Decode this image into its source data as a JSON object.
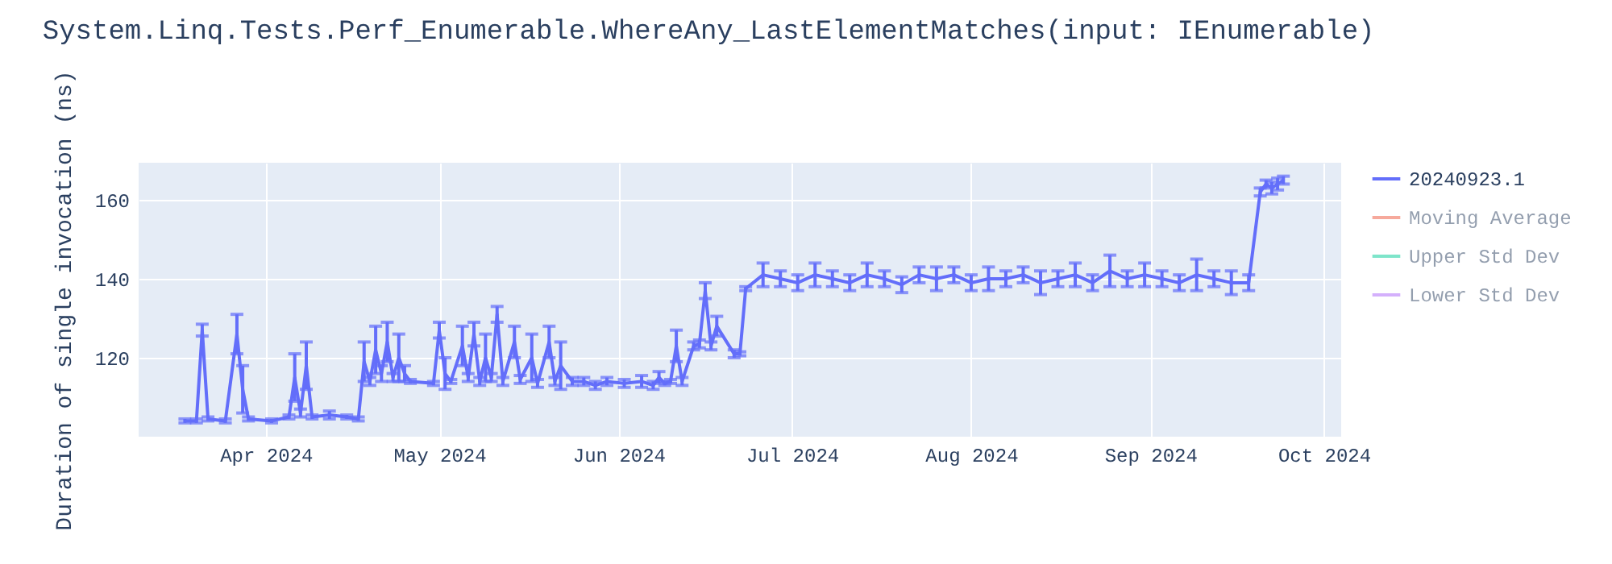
{
  "chart_data": {
    "type": "line",
    "title": "System.Linq.Tests.Perf_Enumerable.WhereAny_LastElementMatches(input: IEnumerable)",
    "ylabel": "Duration of single invocation (ns)",
    "x": [
      "2024-03-18",
      "2024-03-20",
      "2024-03-21",
      "2024-03-22",
      "2024-03-25",
      "2024-03-27",
      "2024-03-28",
      "2024-03-29",
      "2024-04-02",
      "2024-04-05",
      "2024-04-06",
      "2024-04-07",
      "2024-04-08",
      "2024-04-09",
      "2024-04-12",
      "2024-04-15",
      "2024-04-17",
      "2024-04-18",
      "2024-04-19",
      "2024-04-20",
      "2024-04-21",
      "2024-04-22",
      "2024-04-23",
      "2024-04-24",
      "2024-04-25",
      "2024-04-26",
      "2024-04-30",
      "2024-05-01",
      "2024-05-02",
      "2024-05-03",
      "2024-05-05",
      "2024-05-06",
      "2024-05-07",
      "2024-05-08",
      "2024-05-09",
      "2024-05-10",
      "2024-05-11",
      "2024-05-12",
      "2024-05-14",
      "2024-05-15",
      "2024-05-17",
      "2024-05-18",
      "2024-05-20",
      "2024-05-21",
      "2024-05-22",
      "2024-05-24",
      "2024-05-26",
      "2024-05-28",
      "2024-05-30",
      "2024-06-02",
      "2024-06-05",
      "2024-06-07",
      "2024-06-08",
      "2024-06-09",
      "2024-06-10",
      "2024-06-11",
      "2024-06-12",
      "2024-06-14",
      "2024-06-15",
      "2024-06-16",
      "2024-06-17",
      "2024-06-18",
      "2024-06-21",
      "2024-06-22",
      "2024-06-23",
      "2024-06-26",
      "2024-06-29",
      "2024-07-02",
      "2024-07-05",
      "2024-07-08",
      "2024-07-11",
      "2024-07-14",
      "2024-07-17",
      "2024-07-20",
      "2024-07-23",
      "2024-07-26",
      "2024-07-29",
      "2024-08-01",
      "2024-08-04",
      "2024-08-07",
      "2024-08-10",
      "2024-08-13",
      "2024-08-16",
      "2024-08-19",
      "2024-08-22",
      "2024-08-25",
      "2024-08-28",
      "2024-08-31",
      "2024-09-03",
      "2024-09-06",
      "2024-09-09",
      "2024-09-12",
      "2024-09-15",
      "2024-09-18",
      "2024-09-20",
      "2024-09-21",
      "2024-09-22",
      "2024-09-23",
      "2024-09-24"
    ],
    "series": [
      {
        "name": "20240923.1",
        "color": "#636efa",
        "values": [
          104,
          104,
          127,
          104.5,
          104,
          126,
          112,
          104.5,
          104,
          105,
          115,
          106,
          118,
          105,
          105.5,
          105,
          104.5,
          119,
          114,
          122,
          116,
          124,
          115,
          120,
          116,
          114,
          113.5,
          127,
          116,
          114,
          123,
          115,
          126,
          114,
          120,
          115,
          131,
          114,
          124,
          114.5,
          120,
          113.5,
          124,
          114,
          118,
          114,
          114,
          113,
          114,
          113.5,
          114,
          113,
          115,
          113.5,
          114,
          123,
          114,
          123,
          123.5,
          137,
          123,
          128,
          121,
          121,
          137.5,
          141,
          140,
          139,
          141,
          140,
          139,
          141,
          140,
          138.5,
          141,
          140,
          141,
          139,
          140,
          140,
          141,
          139,
          140,
          141,
          139,
          142,
          140,
          141,
          140,
          139,
          141,
          140,
          139,
          139,
          162,
          164,
          163,
          164,
          165
        ],
        "errors": [
          0.5,
          0.5,
          1.5,
          0.5,
          0.5,
          5,
          6,
          0.5,
          0.5,
          0.5,
          6,
          1,
          6,
          0.5,
          1,
          0.5,
          0.5,
          5,
          1,
          6,
          2,
          5,
          1,
          6,
          2,
          0.5,
          0.5,
          2,
          4,
          0.5,
          5,
          1,
          3,
          1,
          6,
          1,
          2,
          1,
          4,
          1,
          6,
          1,
          4,
          1,
          6,
          1,
          1,
          1,
          1,
          1,
          1.5,
          1,
          1.5,
          0.5,
          0.5,
          4,
          1,
          1,
          1,
          2,
          1,
          2.5,
          1,
          0.5,
          0.5,
          3,
          2,
          2,
          3,
          2,
          2,
          3,
          2,
          2,
          2,
          3,
          2,
          2,
          3,
          2,
          2,
          3,
          2,
          3,
          2,
          4,
          2,
          3,
          2,
          2,
          4,
          2,
          3,
          2,
          1,
          1,
          1.5,
          1.5,
          1
        ]
      },
      {
        "name": "Moving Average",
        "color": "#ef553b",
        "values": [
          null,
          null,
          null,
          null,
          null,
          null,
          null,
          null,
          null,
          null,
          null,
          null,
          null,
          null,
          null,
          null,
          null,
          null,
          null,
          null,
          null,
          null,
          null,
          null,
          null,
          null,
          null,
          null,
          null,
          null,
          null,
          null,
          null,
          null,
          null,
          null,
          null,
          null,
          null,
          null,
          null,
          null,
          null,
          null,
          null,
          null,
          null,
          null,
          null,
          null,
          null,
          null,
          null,
          null,
          null,
          null,
          null,
          null,
          null,
          null,
          null,
          null,
          null,
          null,
          null,
          null,
          null,
          null,
          null,
          null,
          null,
          null,
          null,
          null,
          null,
          null,
          null,
          null,
          null,
          null,
          null,
          null,
          null,
          null,
          null,
          null,
          null,
          null,
          null,
          null,
          null,
          null,
          null,
          null,
          null,
          null,
          null,
          null,
          null
        ]
      },
      {
        "name": "Upper Std Dev",
        "color": "#00cc96",
        "values": [
          null,
          null,
          null,
          null,
          null,
          null,
          null,
          null,
          null,
          null,
          null,
          null,
          null,
          null,
          null,
          null,
          null,
          null,
          null,
          null,
          null,
          null,
          null,
          null,
          null,
          null,
          null,
          null,
          null,
          null,
          null,
          null,
          null,
          null,
          null,
          null,
          null,
          null,
          null,
          null,
          null,
          null,
          null,
          null,
          null,
          null,
          null,
          null,
          null,
          null,
          null,
          null,
          null,
          null,
          null,
          null,
          null,
          null,
          null,
          null,
          null,
          null,
          null,
          null,
          null,
          null,
          null,
          null,
          null,
          null,
          null,
          null,
          null,
          null,
          null,
          null,
          null,
          null,
          null,
          null,
          null,
          null,
          null,
          null,
          null,
          null,
          null,
          null,
          null,
          null,
          null,
          null,
          null,
          null,
          null,
          null,
          null,
          null,
          null
        ]
      },
      {
        "name": "Lower Std Dev",
        "color": "#ab63fa",
        "values": [
          null,
          null,
          null,
          null,
          null,
          null,
          null,
          null,
          null,
          null,
          null,
          null,
          null,
          null,
          null,
          null,
          null,
          null,
          null,
          null,
          null,
          null,
          null,
          null,
          null,
          null,
          null,
          null,
          null,
          null,
          null,
          null,
          null,
          null,
          null,
          null,
          null,
          null,
          null,
          null,
          null,
          null,
          null,
          null,
          null,
          null,
          null,
          null,
          null,
          null,
          null,
          null,
          null,
          null,
          null,
          null,
          null,
          null,
          null,
          null,
          null,
          null,
          null,
          null,
          null,
          null,
          null,
          null,
          null,
          null,
          null,
          null,
          null,
          null,
          null,
          null,
          null,
          null,
          null,
          null,
          null,
          null,
          null,
          null,
          null,
          null,
          null,
          null,
          null,
          null,
          null,
          null,
          null,
          null,
          null,
          null,
          null,
          null,
          null
        ]
      }
    ],
    "xlim": [
      "2024-03-10",
      "2024-10-04"
    ],
    "xticks": [
      {
        "value": "2024-04-01",
        "label": "Apr 2024"
      },
      {
        "value": "2024-05-01",
        "label": "May 2024"
      },
      {
        "value": "2024-06-01",
        "label": "Jun 2024"
      },
      {
        "value": "2024-07-01",
        "label": "Jul 2024"
      },
      {
        "value": "2024-08-01",
        "label": "Aug 2024"
      },
      {
        "value": "2024-09-01",
        "label": "Sep 2024"
      },
      {
        "value": "2024-10-01",
        "label": "Oct 2024"
      }
    ],
    "ylim": [
      100,
      169.4
    ],
    "yticks": [
      120,
      140,
      160
    ],
    "grid": true,
    "legend": "top right",
    "marker": "none",
    "line_style": "solid"
  }
}
